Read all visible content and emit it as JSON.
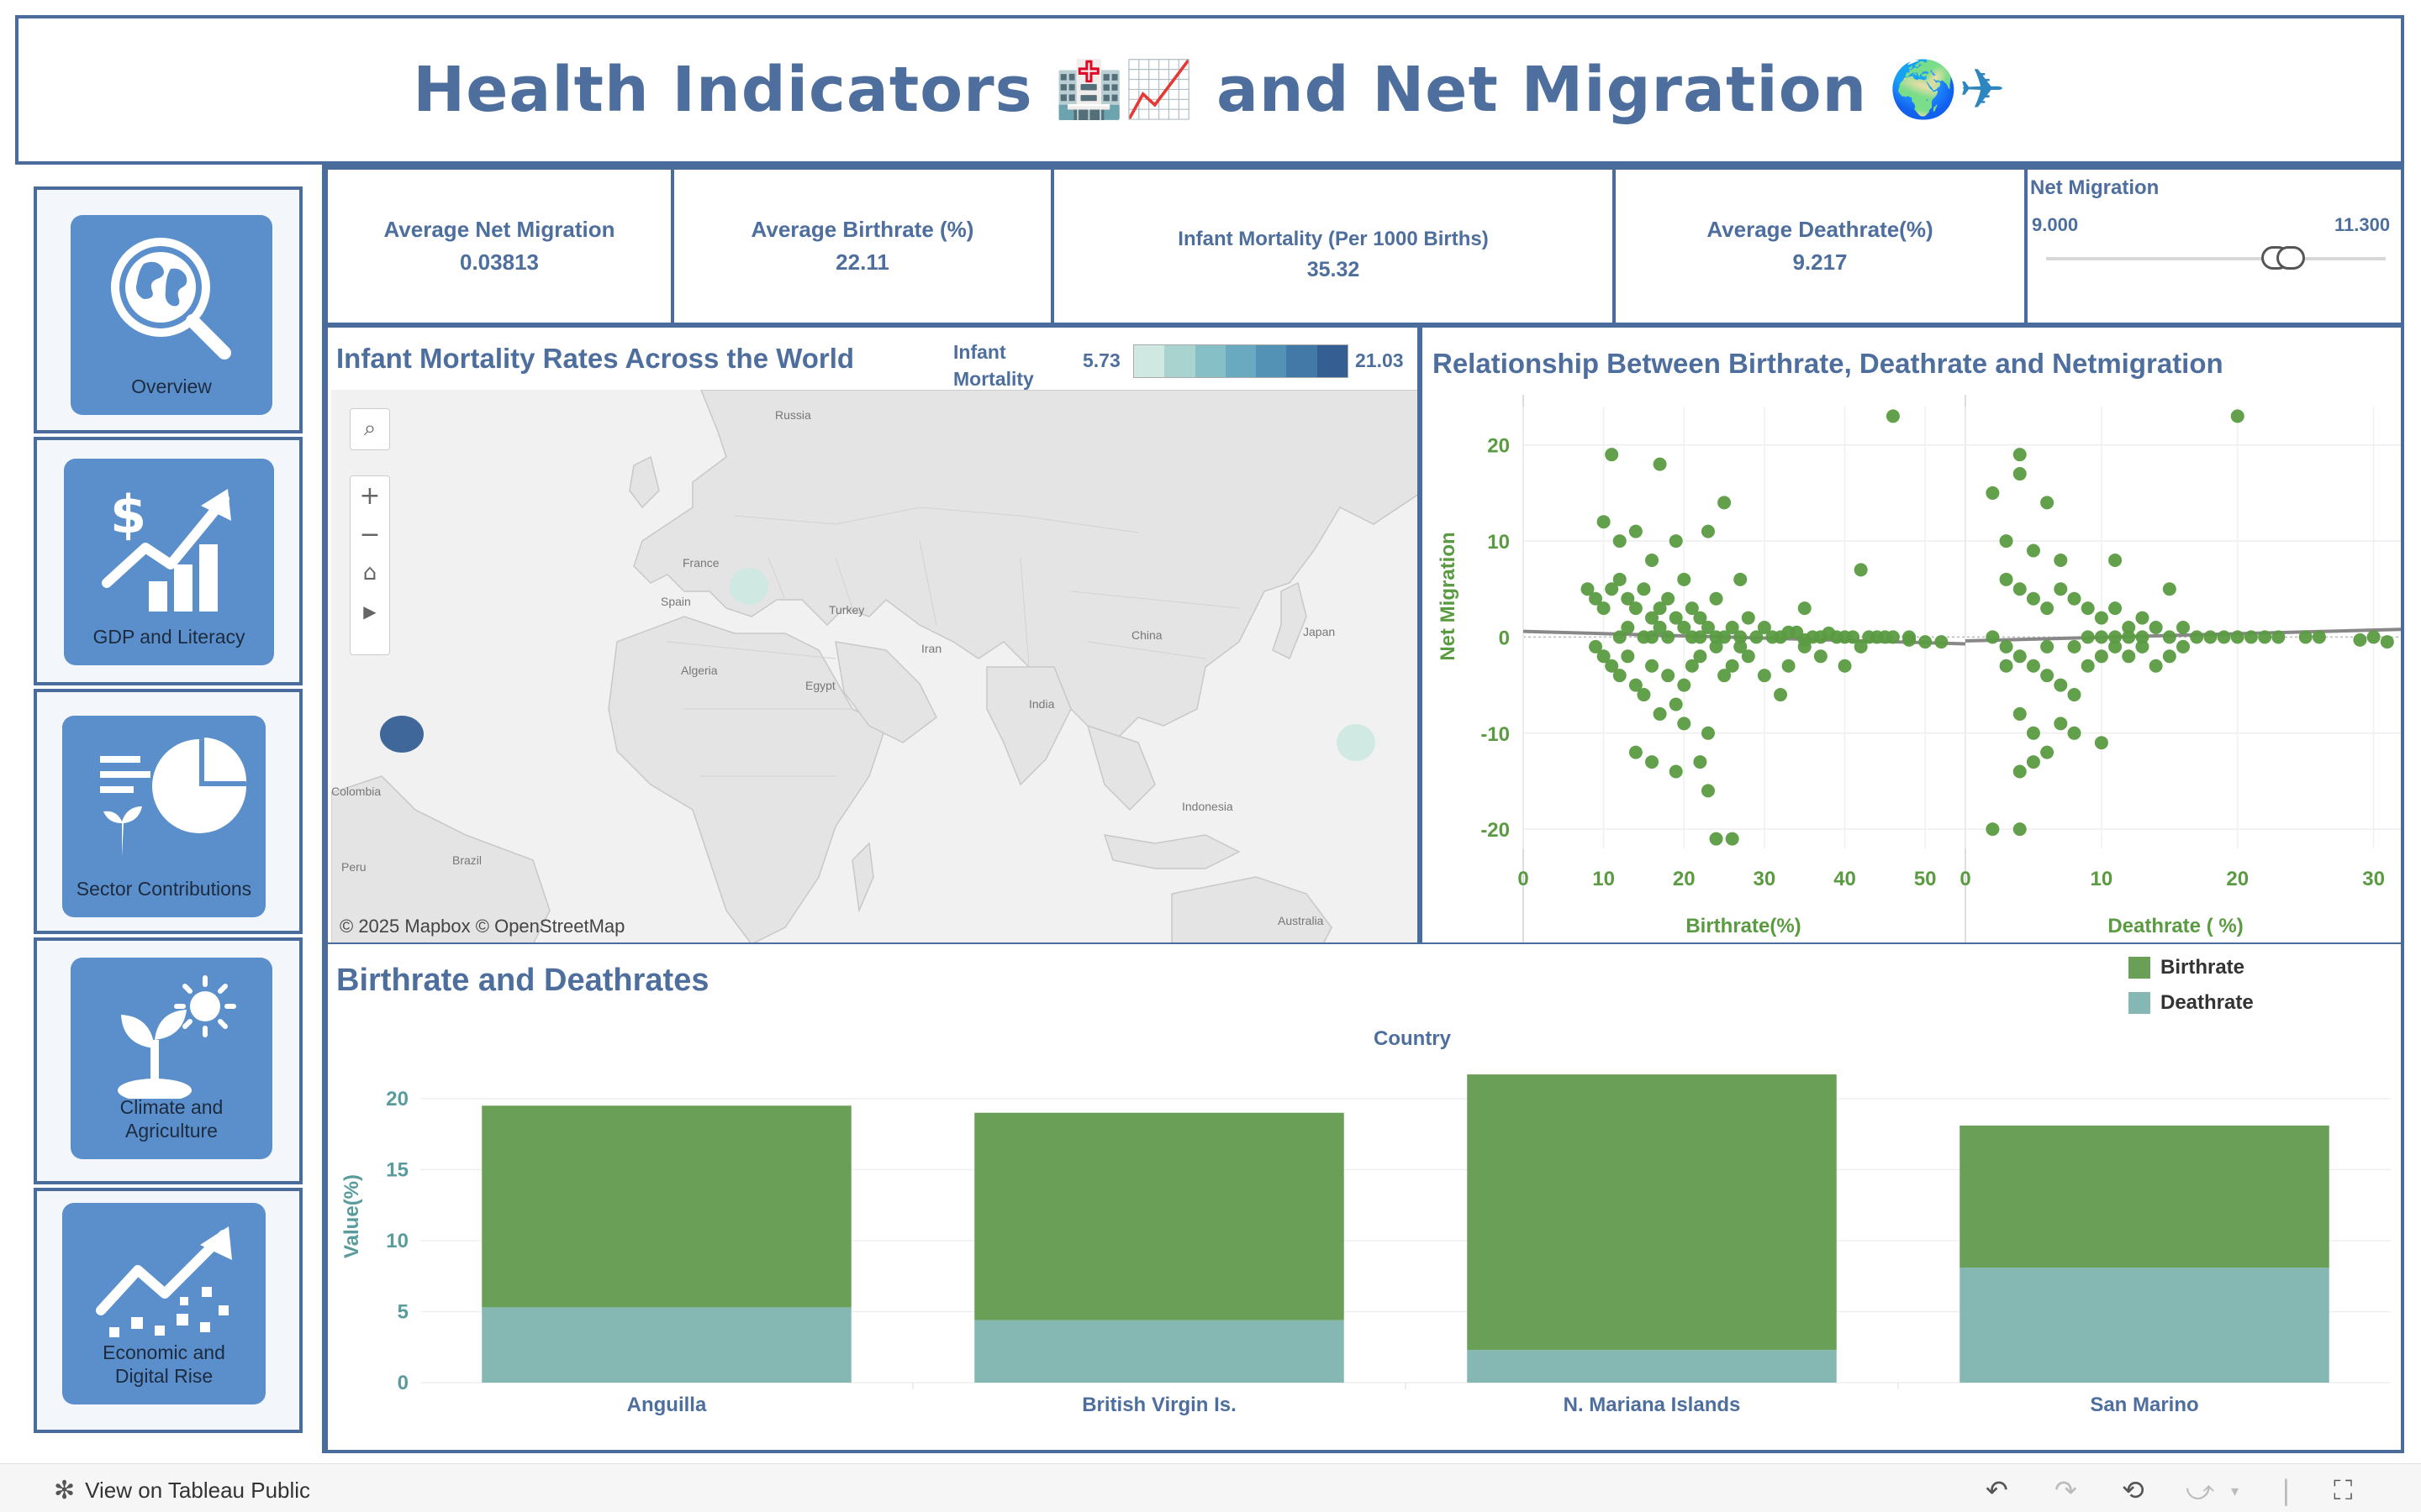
{
  "title": {
    "text_1": "Health Indicators",
    "emoji_1": "🏥📈",
    "text_2": "and Net Migration",
    "emoji_2": "🌍✈"
  },
  "nav": {
    "items": [
      {
        "label": "Overview",
        "icon": "globe-search-icon"
      },
      {
        "label": "GDP and Literacy",
        "icon": "dollar-growth-icon"
      },
      {
        "label": "Sector Contributions",
        "icon": "pie-chart-icon"
      },
      {
        "label": "Climate and Agriculture",
        "label_line1": "Climate and",
        "label_line2": "Agriculture",
        "icon": "plant-sun-icon"
      },
      {
        "label": "Economic and Digital Rise",
        "label_line1": "Economic and",
        "label_line2": "Digital Rise",
        "icon": "trend-up-icon"
      }
    ]
  },
  "kpis": {
    "net_migration": {
      "label": "Average Net Migration",
      "value": "0.03813"
    },
    "birthrate": {
      "label": "Average Birthrate (%)",
      "value": "22.11"
    },
    "infant_mortality": {
      "label": "Infant Mortality (Per 1000 Births)",
      "value": "35.32"
    },
    "deathrate": {
      "label": "Average Deathrate(%)",
      "value": "9.217"
    }
  },
  "slider": {
    "title": "Net Migration",
    "min_label": "9.000",
    "max_label": "11.300"
  },
  "map": {
    "title": "Infant Mortality Rates Across the World",
    "legend_title_1": "Infant",
    "legend_title_2": "Mortality",
    "legend_min": "5.73",
    "legend_max": "21.03",
    "legend_colors": [
      "#cfe8e1",
      "#a8d3cf",
      "#86bfc6",
      "#6aa9c0",
      "#5492b5",
      "#4279a6",
      "#355f93"
    ],
    "attribution": "© 2025 Mapbox  © OpenStreetMap",
    "place_labels": [
      "Russia",
      "France",
      "Spain",
      "Turkey",
      "Algeria",
      "Egypt",
      "Iran",
      "China",
      "Japan",
      "India",
      "Indonesia",
      "Colombia",
      "Brazil",
      "Peru",
      "Australia"
    ]
  },
  "scatter": {
    "title": "Relationship Between Birthrate, Deathrate and Netmigration",
    "ylabel": "Net Migration",
    "left_xlabel": "Birthrate(%)",
    "right_xlabel": "Deathrate ( %)",
    "y_ticks": [
      "20",
      "10",
      "0",
      "-10",
      "-20"
    ],
    "left_x_ticks": [
      "0",
      "10",
      "20",
      "30",
      "40",
      "50"
    ],
    "right_x_ticks": [
      "0",
      "10",
      "20",
      "30"
    ]
  },
  "bars": {
    "title": "Birthrate and Deathrates",
    "header": "Country",
    "ylabel": "Value(%)",
    "legend": [
      {
        "name": "Birthrate",
        "color": "#6a9f58"
      },
      {
        "name": "Deathrate",
        "color": "#85b8b3"
      }
    ]
  },
  "chart_data": [
    {
      "type": "bar",
      "title": "Birthrate and Deathrates",
      "xlabel": "Country",
      "ylabel": "Value(%)",
      "categories": [
        "Anguilla",
        "British Virgin Is.",
        "N. Mariana Islands",
        "San Marino"
      ],
      "series": [
        {
          "name": "Birthrate",
          "values": [
            14.2,
            14.6,
            19.4,
            10.0
          ]
        },
        {
          "name": "Deathrate",
          "values": [
            5.3,
            4.4,
            2.3,
            8.1
          ]
        }
      ],
      "stacked": true,
      "ylim": [
        0,
        22
      ],
      "y_ticks": [
        0,
        5,
        10,
        15,
        20
      ]
    },
    {
      "type": "scatter",
      "title": "Relationship Between Birthrate, Deathrate and Netmigration",
      "panels": [
        {
          "xlabel": "Birthrate(%)",
          "ylabel": "Net Migration",
          "xlim": [
            0,
            55
          ],
          "ylim": [
            -22,
            24
          ]
        },
        {
          "xlabel": "Deathrate ( %)",
          "ylabel": "Net Migration",
          "xlim": [
            0,
            32
          ],
          "ylim": [
            -22,
            24
          ]
        }
      ],
      "birthrate_points": [
        [
          46,
          23
        ],
        [
          11,
          19
        ],
        [
          17,
          18
        ],
        [
          25,
          14
        ],
        [
          10,
          12
        ],
        [
          14,
          11
        ],
        [
          23,
          11
        ],
        [
          12,
          10
        ],
        [
          19,
          10
        ],
        [
          16,
          8
        ],
        [
          42,
          7
        ],
        [
          20,
          6
        ],
        [
          27,
          6
        ],
        [
          35,
          3
        ],
        [
          8,
          5
        ],
        [
          9,
          4
        ],
        [
          10,
          3
        ],
        [
          11,
          5
        ],
        [
          12,
          6
        ],
        [
          13,
          4
        ],
        [
          14,
          3
        ],
        [
          15,
          5
        ],
        [
          16,
          2
        ],
        [
          17,
          3
        ],
        [
          18,
          4
        ],
        [
          19,
          2
        ],
        [
          20,
          1
        ],
        [
          21,
          3
        ],
        [
          22,
          2
        ],
        [
          24,
          4
        ],
        [
          26,
          1
        ],
        [
          28,
          2
        ],
        [
          30,
          1
        ],
        [
          32,
          0
        ],
        [
          34,
          0.5
        ],
        [
          36,
          0
        ],
        [
          38,
          0.4
        ],
        [
          40,
          0
        ],
        [
          44,
          0
        ],
        [
          48,
          0
        ],
        [
          50,
          -0.5
        ],
        [
          52,
          -0.5
        ],
        [
          9,
          -1
        ],
        [
          10,
          -2
        ],
        [
          11,
          -3
        ],
        [
          12,
          -4
        ],
        [
          13,
          -2
        ],
        [
          14,
          -5
        ],
        [
          15,
          -6
        ],
        [
          16,
          -3
        ],
        [
          17,
          -8
        ],
        [
          18,
          -4
        ],
        [
          19,
          -7
        ],
        [
          20,
          -5
        ],
        [
          21,
          -3
        ],
        [
          22,
          -2
        ],
        [
          23,
          -10
        ],
        [
          24,
          -1
        ],
        [
          25,
          -4
        ],
        [
          26,
          -3
        ],
        [
          27,
          -1
        ],
        [
          28,
          -2
        ],
        [
          30,
          -4
        ],
        [
          32,
          -6
        ],
        [
          33,
          -3
        ],
        [
          35,
          -1
        ],
        [
          37,
          -2
        ],
        [
          40,
          -3
        ],
        [
          42,
          -1
        ],
        [
          45,
          0
        ],
        [
          14,
          -12
        ],
        [
          16,
          -13
        ],
        [
          19,
          -14
        ],
        [
          22,
          -13
        ],
        [
          23,
          -16
        ],
        [
          24,
          -21
        ],
        [
          26,
          -21
        ],
        [
          20,
          -9
        ],
        [
          12,
          0
        ],
        [
          13,
          1
        ],
        [
          15,
          0
        ],
        [
          16,
          0
        ],
        [
          17,
          1
        ],
        [
          18,
          0
        ],
        [
          21,
          0
        ],
        [
          22,
          0
        ],
        [
          23,
          1
        ],
        [
          24,
          0
        ],
        [
          25,
          0
        ],
        [
          27,
          0
        ],
        [
          29,
          0
        ],
        [
          31,
          0
        ],
        [
          33,
          0.5
        ],
        [
          35,
          -0.3
        ],
        [
          37,
          0
        ],
        [
          39,
          0
        ],
        [
          41,
          0
        ],
        [
          43,
          0
        ],
        [
          46,
          0
        ],
        [
          48,
          -0.3
        ]
      ],
      "deathrate_points": [
        [
          20,
          23
        ],
        [
          4,
          19
        ],
        [
          4,
          17
        ],
        [
          2,
          15
        ],
        [
          6,
          14
        ],
        [
          3,
          10
        ],
        [
          5,
          9
        ],
        [
          7,
          8
        ],
        [
          11,
          8
        ],
        [
          15,
          5
        ],
        [
          3,
          6
        ],
        [
          4,
          5
        ],
        [
          5,
          4
        ],
        [
          6,
          3
        ],
        [
          7,
          5
        ],
        [
          8,
          4
        ],
        [
          9,
          3
        ],
        [
          10,
          2
        ],
        [
          11,
          3
        ],
        [
          12,
          1
        ],
        [
          13,
          2
        ],
        [
          14,
          1
        ],
        [
          16,
          1
        ],
        [
          18,
          0
        ],
        [
          20,
          0
        ],
        [
          22,
          0
        ],
        [
          25,
          0
        ],
        [
          30,
          0
        ],
        [
          2,
          0
        ],
        [
          3,
          -1
        ],
        [
          4,
          -2
        ],
        [
          5,
          -3
        ],
        [
          6,
          -4
        ],
        [
          7,
          -5
        ],
        [
          8,
          -6
        ],
        [
          9,
          -3
        ],
        [
          10,
          -2
        ],
        [
          11,
          -1
        ],
        [
          12,
          -2
        ],
        [
          13,
          -1
        ],
        [
          14,
          -3
        ],
        [
          15,
          -2
        ],
        [
          16,
          -1
        ],
        [
          4,
          -8
        ],
        [
          5,
          -10
        ],
        [
          6,
          -12
        ],
        [
          5,
          -13
        ],
        [
          4,
          -14
        ],
        [
          8,
          -10
        ],
        [
          7,
          -9
        ],
        [
          10,
          -11
        ],
        [
          2,
          -20
        ],
        [
          4,
          -20
        ],
        [
          3,
          -3
        ],
        [
          6,
          -1
        ],
        [
          8,
          -1
        ],
        [
          9,
          0
        ],
        [
          10,
          0
        ],
        [
          11,
          0
        ],
        [
          12,
          0
        ],
        [
          13,
          0
        ],
        [
          15,
          0
        ],
        [
          17,
          0
        ],
        [
          19,
          0
        ],
        [
          21,
          0
        ],
        [
          23,
          0
        ],
        [
          26,
          0
        ],
        [
          29,
          -0.3
        ],
        [
          31,
          -0.5
        ]
      ]
    },
    {
      "type": "heatmap",
      "title": "Infant Mortality Rates Across the World",
      "legend_range": [
        5.73,
        21.03
      ],
      "markers": [
        {
          "region": "Caribbean",
          "value": 21.03
        },
        {
          "region": "Southern Europe",
          "value": 5.73
        },
        {
          "region": "Western Pacific",
          "value": 5.73
        }
      ]
    }
  ],
  "footer": {
    "link": "View on Tableau Public"
  }
}
